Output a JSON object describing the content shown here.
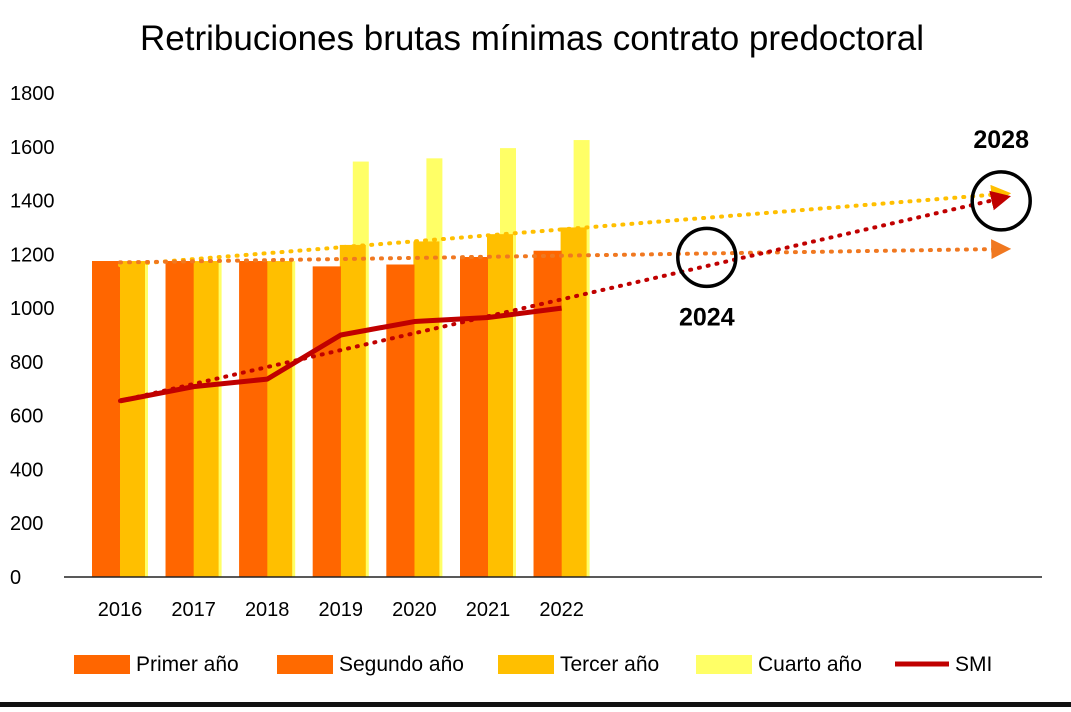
{
  "chart_data": {
    "type": "bar",
    "title": "Retribuciones brutas mínimas contrato predoctoral",
    "categories": [
      "2016",
      "2017",
      "2018",
      "2019",
      "2020",
      "2021",
      "2022"
    ],
    "ylim": [
      0,
      1800
    ],
    "yticks": [
      "0",
      "200",
      "400",
      "600",
      "800",
      "1000",
      "1200",
      "1400",
      "1600",
      "1800"
    ],
    "grid": false,
    "legend_position": "bottom",
    "series": [
      {
        "name": "Primer año",
        "kind": "bar",
        "color": "#ff6600",
        "values": [
          1175,
          1175,
          1175,
          1155,
          1162,
          1190,
          1213
        ]
      },
      {
        "name": "Segundo año",
        "kind": "bar",
        "color": "#ff6a00",
        "values": [
          1175,
          1175,
          1175,
          1155,
          1162,
          1190,
          1213
        ]
      },
      {
        "name": "Tercer año",
        "kind": "bar",
        "color": "#ffbf00",
        "values": [
          1175,
          1175,
          1175,
          1235,
          1248,
          1275,
          1300
        ]
      },
      {
        "name": "Cuarto año",
        "kind": "bar",
        "color": "#ffff66",
        "values": [
          1175,
          1175,
          1175,
          1545,
          1557,
          1595,
          1625
        ]
      },
      {
        "name": "SMI",
        "kind": "line",
        "color": "#c00000",
        "values": [
          655,
          708,
          736,
          900,
          950,
          965,
          1000
        ]
      }
    ],
    "trend_lines": [
      {
        "color": "#ffbf00",
        "from": {
          "x": "2016",
          "y": 1160
        },
        "to": {
          "x": "2028",
          "y": 1425
        }
      },
      {
        "color": "#f07820",
        "from": {
          "x": "2016",
          "y": 1170
        },
        "to": {
          "x": "2028",
          "y": 1220
        }
      },
      {
        "color": "#c00000",
        "from": {
          "x": "2016",
          "y": 655
        },
        "to": {
          "x": "2028",
          "y": 1410
        }
      }
    ],
    "annotations": [
      {
        "text": "2024",
        "x": "2024",
        "y": 1200
      },
      {
        "text": "2028",
        "x": "2028",
        "y": 1410
      }
    ]
  }
}
